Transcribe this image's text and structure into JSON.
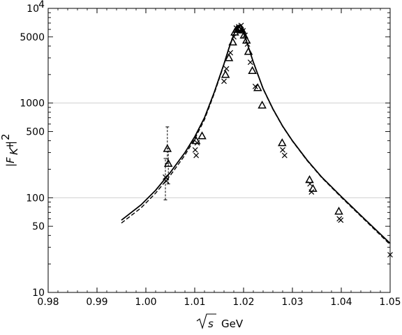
{
  "chart_data": {
    "type": "scatter",
    "title": "",
    "xlabel_parts": [
      "s",
      "GeV"
    ],
    "ylabel_parts": [
      "|F",
      "K",
      "+",
      "|",
      "2"
    ],
    "xlim": [
      0.98,
      1.05
    ],
    "ylim": [
      10,
      10000
    ],
    "yscale": "log",
    "grid": "horizontal at 100 and 1000",
    "legend": "none",
    "x_ticks": [
      "0.98",
      "0.99",
      "1.00",
      "1.01",
      "1.02",
      "1.03",
      "1.04",
      "1.05"
    ],
    "y_ticks": [
      {
        "value": 10,
        "label": "10"
      },
      {
        "value": 50,
        "label": "50"
      },
      {
        "value": 100,
        "label": "100"
      },
      {
        "value": 500,
        "label": "500"
      },
      {
        "value": 1000,
        "label": "1000"
      },
      {
        "value": 5000,
        "label": "5000"
      },
      {
        "value": 10000,
        "label": "10",
        "sup": "4"
      }
    ],
    "series": [
      {
        "style": "solid-line",
        "color": "#000000",
        "x": [
          0.995,
          0.999,
          1.002,
          1.005,
          1.008,
          1.01,
          1.012,
          1.014,
          1.016,
          1.017,
          1.018,
          1.0185,
          1.019,
          1.0195,
          1.02,
          1.0205,
          1.021,
          1.022,
          1.024,
          1.026,
          1.028,
          1.03,
          1.033,
          1.036,
          1.04,
          1.045,
          1.05
        ],
        "y": [
          58,
          84,
          120,
          185,
          300,
          440,
          700,
          1300,
          2600,
          3800,
          5300,
          5950,
          6300,
          6150,
          5500,
          4700,
          3900,
          2700,
          1420,
          870,
          570,
          400,
          250,
          165,
          103,
          58,
          33
        ]
      },
      {
        "style": "dashed-line",
        "color": "#000000",
        "x": [
          0.995,
          0.999,
          1.002,
          1.005,
          1.008,
          1.01,
          1.012,
          1.014,
          1.016,
          1.017,
          1.018,
          1.0185,
          1.019,
          1.0195,
          1.02,
          1.0205,
          1.021,
          1.022,
          1.024,
          1.026,
          1.028,
          1.03,
          1.033,
          1.036,
          1.04,
          1.045,
          1.05
        ],
        "y": [
          54,
          78,
          112,
          172,
          282,
          418,
          670,
          1260,
          2550,
          3750,
          5250,
          5900,
          6280,
          6130,
          5480,
          4690,
          3890,
          2690,
          1410,
          860,
          565,
          396,
          247,
          163,
          101,
          57,
          32
        ]
      },
      {
        "marker": "triangle",
        "x": [
          1.0044,
          1.0046,
          1.0103,
          1.0115,
          1.0163,
          1.017,
          1.0178,
          1.0182,
          1.0186,
          1.019,
          1.0193,
          1.0197,
          1.0201,
          1.0206,
          1.021,
          1.0218,
          1.0229,
          1.0238,
          1.0279,
          1.0335,
          1.0342,
          1.0395
        ],
        "y": [
          330,
          230,
          400,
          450,
          2000,
          3000,
          4400,
          5600,
          6000,
          6100,
          6200,
          5900,
          5200,
          4600,
          3500,
          2200,
          1450,
          950,
          380,
          155,
          125,
          72
        ],
        "err_low": [
          230,
          140,
          0,
          0,
          0,
          0,
          0,
          0,
          0,
          0,
          0,
          0,
          0,
          0,
          0,
          0,
          0,
          0,
          0,
          0,
          0,
          0
        ],
        "err_high": [
          560,
          330,
          0,
          0,
          0,
          0,
          0,
          0,
          0,
          0,
          0,
          0,
          0,
          0,
          0,
          0,
          0,
          0,
          0,
          0,
          0,
          0
        ]
      },
      {
        "marker": "cross",
        "x": [
          1.004,
          1.0042,
          1.0101,
          1.0103,
          1.0105,
          1.016,
          1.0165,
          1.0173,
          1.018,
          1.0185,
          1.019,
          1.0195,
          1.0199,
          1.0203,
          1.0208,
          1.0214,
          1.0224,
          1.028,
          1.0284,
          1.0336,
          1.0339,
          1.0396,
          1.0399,
          1.05
        ],
        "y": [
          165,
          150,
          320,
          280,
          380,
          1700,
          2300,
          3400,
          5000,
          6200,
          6400,
          6600,
          5800,
          5200,
          4200,
          2700,
          1500,
          320,
          280,
          140,
          115,
          60,
          58,
          25
        ],
        "err_low": [
          95,
          0,
          0,
          0,
          0,
          0,
          0,
          0,
          0,
          0,
          0,
          0,
          0,
          0,
          0,
          0,
          0,
          0,
          0,
          0,
          0,
          0,
          0,
          0
        ],
        "err_high": [
          260,
          0,
          0,
          0,
          0,
          0,
          0,
          0,
          0,
          0,
          0,
          0,
          0,
          0,
          0,
          0,
          0,
          0,
          0,
          0,
          0,
          0,
          0,
          0
        ]
      }
    ]
  }
}
